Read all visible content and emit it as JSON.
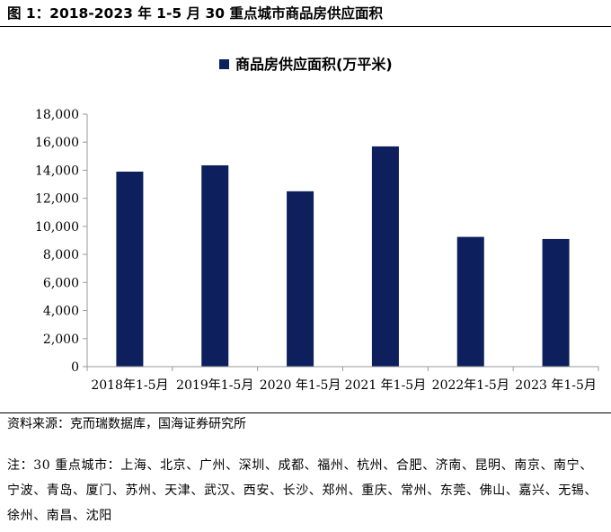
{
  "figure": {
    "title": "图 1：2018-2023 年 1-5 月 30 重点城市商品房供应面积"
  },
  "chart_data": {
    "type": "bar",
    "title": "",
    "categories": [
      "2018年1-5月",
      "2019年1-5月",
      "2020 年1-5月",
      "2021 年1-5月",
      "2022年1-5月",
      "2023 年1-5月"
    ],
    "series": [
      {
        "name": "商品房供应面积(万平米)",
        "values": [
          13900,
          14350,
          12500,
          15700,
          9250,
          9100
        ]
      }
    ],
    "ylim": [
      0,
      18000
    ],
    "yticks": [
      0,
      2000,
      4000,
      6000,
      8000,
      10000,
      12000,
      14000,
      16000,
      18000
    ],
    "ytick_labels": [
      "0",
      "2,000",
      "4,000",
      "6,000",
      "8,000",
      "10,000",
      "12,000",
      "14,000",
      "16,000",
      "18,000"
    ],
    "legend_position": "top-center",
    "grid": false,
    "colors": {
      "bar": "#0d1f5c",
      "axis": "#999999"
    }
  },
  "footer": {
    "source": "资料来源：克而瑞数据库，国海证券研究所",
    "note": "注：30 重点城市：上海、北京、广州、深圳、成都、福州、杭州、合肥、济南、昆明、南京、南宁、宁波、青岛、厦门、苏州、天津、武汉、西安、长沙、郑州、重庆、常州、东莞、佛山、嘉兴、无锡、徐州、南昌、沈阳"
  }
}
